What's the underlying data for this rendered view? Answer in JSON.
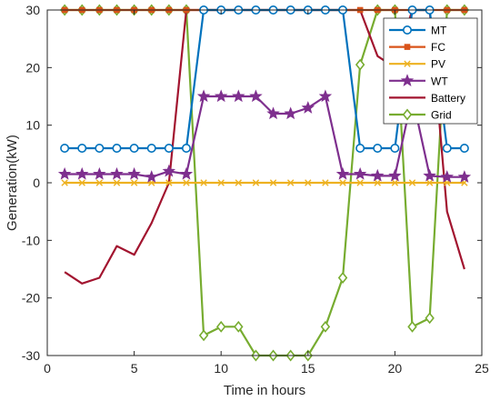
{
  "chart_data": {
    "type": "line",
    "xlabel": "Time in hours",
    "ylabel": "Generation(kW)",
    "xlim": [
      0,
      25
    ],
    "ylim": [
      -30,
      30
    ],
    "xticks": [
      0,
      5,
      10,
      15,
      20,
      25
    ],
    "yticks": [
      -30,
      -20,
      -10,
      0,
      10,
      20,
      30
    ],
    "grid": false,
    "legend_position": "top-right",
    "x": [
      1,
      2,
      3,
      4,
      5,
      6,
      7,
      8,
      9,
      10,
      11,
      12,
      13,
      14,
      15,
      16,
      17,
      18,
      19,
      20,
      21,
      22,
      23,
      24
    ],
    "series": [
      {
        "name": "MT",
        "color": "#0072BD",
        "marker": "circle",
        "values": [
          6,
          6,
          6,
          6,
          6,
          6,
          6,
          6,
          30,
          30,
          30,
          30,
          30,
          30,
          30,
          30,
          30,
          6,
          6,
          6,
          30,
          30,
          6,
          6
        ]
      },
      {
        "name": "FC",
        "color": "#D95319",
        "marker": "square",
        "values": [
          30,
          30,
          30,
          30,
          30,
          30,
          30,
          30,
          30,
          30,
          30,
          30,
          30,
          30,
          30,
          30,
          30,
          30,
          30,
          30,
          30,
          30,
          30,
          30
        ]
      },
      {
        "name": "PV",
        "color": "#EDB120",
        "marker": "x",
        "values": [
          0,
          0,
          0,
          0,
          0,
          0,
          0,
          0,
          0,
          0,
          0,
          0,
          0,
          0,
          0,
          0,
          0,
          0,
          0,
          0,
          0,
          0,
          0,
          0
        ]
      },
      {
        "name": "WT",
        "color": "#7E2F8E",
        "marker": "star",
        "values": [
          1.5,
          1.5,
          1.5,
          1.5,
          1.5,
          1,
          2,
          1.5,
          15,
          15,
          15,
          15,
          12,
          12,
          13,
          15,
          1.5,
          1.5,
          1.2,
          1.2,
          15,
          1.2,
          1,
          1
        ]
      },
      {
        "name": "Battery",
        "color": "#A2142F",
        "marker": "none",
        "values": [
          -15.5,
          -17.5,
          -16.5,
          -11,
          -12.5,
          -7,
          0,
          30,
          30,
          30,
          30,
          30,
          30,
          30,
          30,
          30,
          30,
          30,
          22,
          20,
          30,
          30,
          -5,
          -15
        ]
      },
      {
        "name": "Grid",
        "color": "#77AC30",
        "marker": "diamond",
        "values": [
          30,
          30,
          30,
          30,
          30,
          30,
          30,
          30,
          -26.5,
          -25,
          -25,
          -30,
          -30,
          -30,
          -30,
          -25,
          -16.5,
          20.5,
          30,
          30,
          -25,
          -23.5,
          30,
          30
        ]
      }
    ]
  }
}
